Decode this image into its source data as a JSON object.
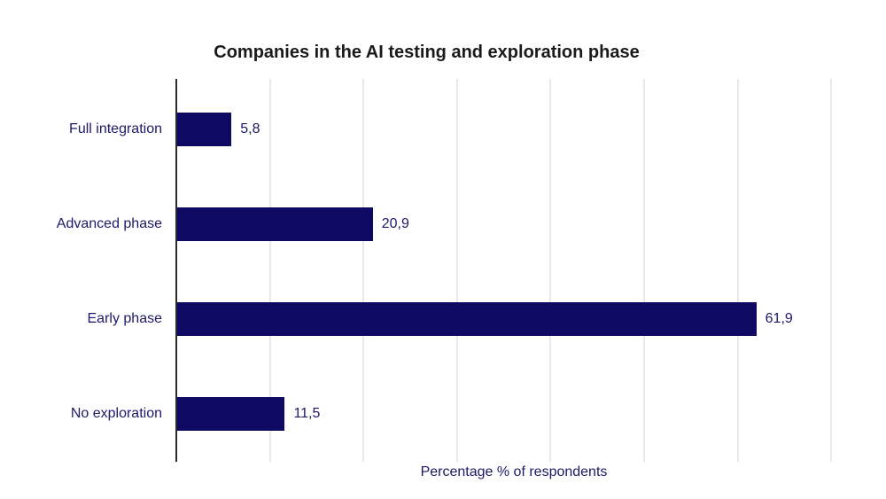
{
  "title": "Companies in the AI testing and exploration phase",
  "chart_data": {
    "type": "bar",
    "orientation": "horizontal",
    "title": "Companies in the AI testing and exploration phase",
    "categories": [
      "Full integration",
      "Advanced phase",
      "Early phase",
      "No exploration"
    ],
    "values": [
      5.8,
      20.9,
      61.9,
      11.5
    ],
    "value_labels": [
      "5,8",
      "20,9",
      "61,9",
      "11,5"
    ],
    "xlabel": "Percentage % of respondents",
    "ylabel": "",
    "xlim": [
      0,
      70
    ],
    "grid": "vertical gridlines every 10 units, no tick labels",
    "legend": "none",
    "colors": {
      "bar": "#0e0a64",
      "label_text": "#1e1968",
      "title_text": "#1a1a1a",
      "gridline": "#e9e9e9",
      "axis_line": "#2b2b2b",
      "background": "#ffffff"
    }
  }
}
